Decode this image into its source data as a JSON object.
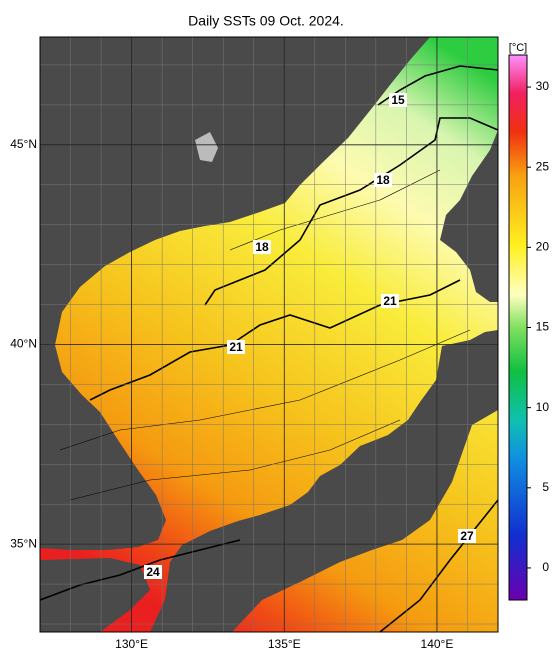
{
  "title": "Daily SSTs 09 Oct. 2024.",
  "map": {
    "xlim": [
      127,
      142
    ],
    "ylim": [
      32.8,
      47.7
    ],
    "xticks": [
      {
        "value": 130,
        "label": "130°E"
      },
      {
        "value": 135,
        "label": "135°E"
      },
      {
        "value": 140,
        "label": "140°E"
      }
    ],
    "yticks": [
      {
        "value": 35,
        "label": "35°N"
      },
      {
        "value": 40,
        "label": "40°N"
      },
      {
        "value": 45,
        "label": "45°N"
      }
    ],
    "contour_labels": [
      "15",
      "18",
      "18",
      "21",
      "21",
      "24",
      "27"
    ]
  },
  "colorbar": {
    "unit": "[°C]",
    "lim": [
      -2,
      32
    ],
    "ticks": [
      0,
      5,
      10,
      15,
      20,
      25,
      30
    ]
  }
}
